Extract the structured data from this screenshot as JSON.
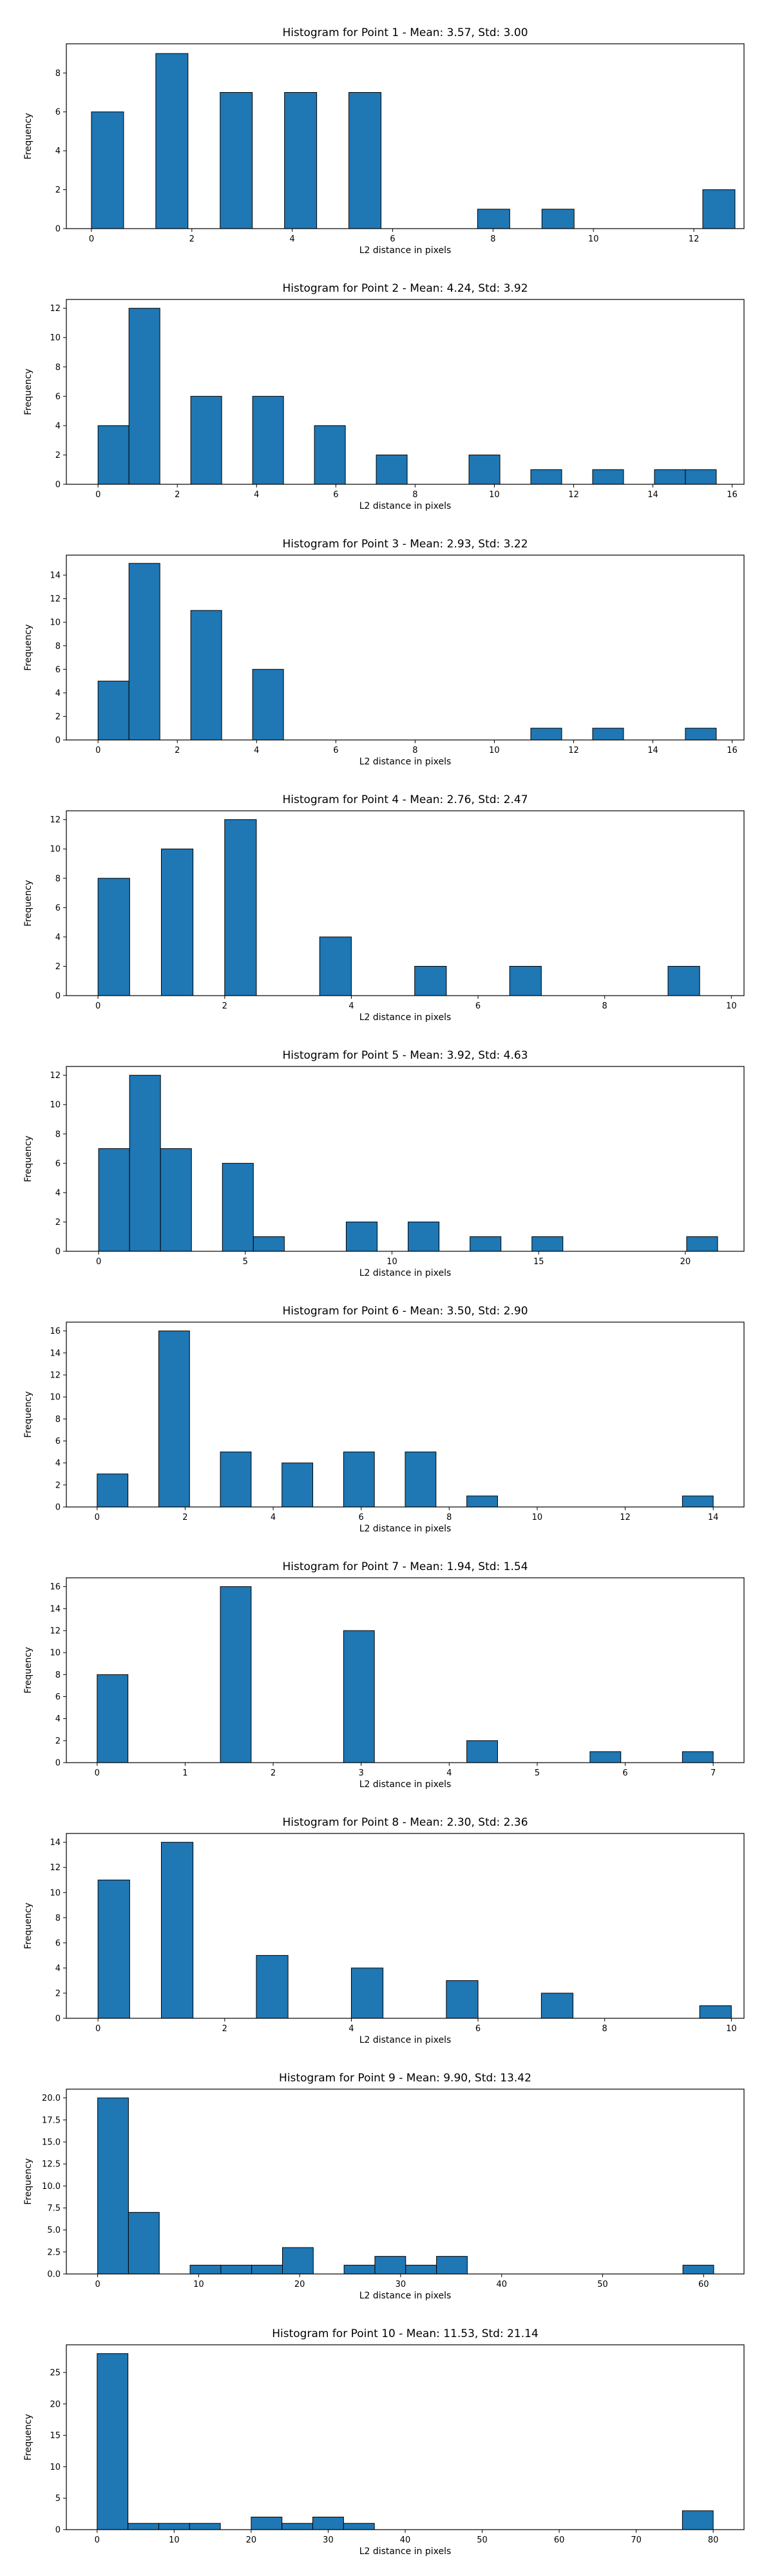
{
  "style": {
    "bar_color": "#1f77b4",
    "bar_edge_color": "#000000",
    "background": "#ffffff"
  },
  "chart_data": [
    {
      "type": "bar",
      "title": "Histogram for Point 1 - Mean: 3.57, Std: 3.00",
      "xlabel": "L2 distance in pixels",
      "ylabel": "Frequency",
      "xlim": [
        -0.5,
        13.0
      ],
      "ylim": [
        0,
        9.5
      ],
      "xticks": [
        0,
        2,
        4,
        6,
        8,
        10,
        12
      ],
      "yticks": [
        0,
        2,
        4,
        6,
        8
      ],
      "bin_edges": [
        0,
        0.641,
        1.282,
        1.923,
        2.564,
        3.205,
        3.846,
        4.487,
        5.128,
        5.769,
        6.41,
        7.051,
        7.692,
        8.333,
        8.974,
        9.615,
        10.256,
        10.897,
        11.538,
        12.179,
        12.82
      ],
      "values": [
        6,
        0,
        9,
        0,
        7,
        0,
        7,
        0,
        7,
        0,
        0,
        0,
        1,
        0,
        1,
        0,
        0,
        0,
        0,
        2
      ]
    },
    {
      "type": "bar",
      "title": "Histogram for Point 2 - Mean: 4.24, Std: 3.92",
      "xlabel": "L2 distance in pixels",
      "ylabel": "Frequency",
      "xlim": [
        -0.8,
        16.3
      ],
      "ylim": [
        0,
        12.6
      ],
      "xticks": [
        0,
        2,
        4,
        6,
        8,
        10,
        12,
        14,
        16
      ],
      "yticks": [
        0,
        2,
        4,
        6,
        8,
        10,
        12
      ],
      "bin_edges": [
        0,
        0.78,
        1.56,
        2.34,
        3.12,
        3.9,
        4.68,
        5.46,
        6.24,
        7.02,
        7.8,
        8.58,
        9.36,
        10.14,
        10.92,
        11.7,
        12.48,
        13.26,
        14.04,
        14.82,
        15.6
      ],
      "values": [
        4,
        12,
        0,
        6,
        0,
        6,
        0,
        4,
        0,
        2,
        0,
        0,
        2,
        0,
        1,
        0,
        1,
        0,
        1,
        1
      ]
    },
    {
      "type": "bar",
      "title": "Histogram for Point 3 - Mean: 2.93, Std: 3.22",
      "xlabel": "L2 distance in pixels",
      "ylabel": "Frequency",
      "xlim": [
        -0.8,
        16.3
      ],
      "ylim": [
        0,
        15.7
      ],
      "xticks": [
        0,
        2,
        4,
        6,
        8,
        10,
        12,
        14,
        16
      ],
      "yticks": [
        0,
        2,
        4,
        6,
        8,
        10,
        12,
        14
      ],
      "bin_edges": [
        0,
        0.78,
        1.56,
        2.34,
        3.12,
        3.9,
        4.68,
        5.46,
        6.24,
        7.02,
        7.8,
        8.58,
        9.36,
        10.14,
        10.92,
        11.7,
        12.48,
        13.26,
        14.04,
        14.82,
        15.6
      ],
      "values": [
        5,
        15,
        0,
        11,
        0,
        6,
        0,
        0,
        0,
        0,
        0,
        0,
        0,
        0,
        1,
        0,
        1,
        0,
        0,
        1
      ]
    },
    {
      "type": "bar",
      "title": "Histogram for Point 4 - Mean: 2.76, Std: 2.47",
      "xlabel": "L2 distance in pixels",
      "ylabel": "Frequency",
      "xlim": [
        -0.5,
        10.2
      ],
      "ylim": [
        0,
        12.6
      ],
      "xticks": [
        0,
        2,
        4,
        6,
        8,
        10
      ],
      "yticks": [
        0,
        2,
        4,
        6,
        8,
        10,
        12
      ],
      "bin_edges": [
        0,
        0.5,
        1.0,
        1.5,
        2.0,
        2.5,
        3.0,
        3.5,
        4.0,
        4.5,
        5.0,
        5.5,
        6.0,
        6.5,
        7.0,
        7.5,
        8.0,
        8.5,
        9.0,
        9.5,
        10.0
      ],
      "values": [
        8,
        0,
        10,
        0,
        12,
        0,
        0,
        4,
        0,
        0,
        2,
        0,
        0,
        2,
        0,
        0,
        0,
        0,
        2,
        0
      ]
    },
    {
      "type": "bar",
      "title": "Histogram for Point 5 - Mean: 3.92, Std: 4.63",
      "xlabel": "L2 distance in pixels",
      "ylabel": "Frequency",
      "xlim": [
        -1.1,
        22.0
      ],
      "ylim": [
        0,
        12.6
      ],
      "xticks": [
        0,
        5,
        10,
        15,
        20
      ],
      "yticks": [
        0,
        2,
        4,
        6,
        8,
        10,
        12
      ],
      "bin_edges": [
        0,
        1.055,
        2.11,
        3.165,
        4.22,
        5.275,
        6.33,
        7.385,
        8.44,
        9.495,
        10.55,
        11.605,
        12.66,
        13.715,
        14.77,
        15.825,
        16.88,
        17.935,
        18.99,
        20.045,
        21.1
      ],
      "values": [
        7,
        12,
        7,
        0,
        6,
        1,
        0,
        0,
        2,
        0,
        2,
        0,
        1,
        0,
        1,
        0,
        0,
        0,
        0,
        1
      ]
    },
    {
      "type": "bar",
      "title": "Histogram for Point 6 - Mean: 3.50, Std: 2.90",
      "xlabel": "L2 distance in pixels",
      "ylabel": "Frequency",
      "xlim": [
        -0.7,
        14.7
      ],
      "ylim": [
        0,
        16.8
      ],
      "xticks": [
        0,
        2,
        4,
        6,
        8,
        10,
        12,
        14
      ],
      "yticks": [
        0,
        2,
        4,
        6,
        8,
        10,
        12,
        14,
        16
      ],
      "bin_edges": [
        0,
        0.7,
        1.4,
        2.1,
        2.8,
        3.5,
        4.2,
        4.9,
        5.6,
        6.3,
        7.0,
        7.7,
        8.4,
        9.1,
        9.8,
        10.5,
        11.2,
        11.9,
        12.6,
        13.3,
        14.0
      ],
      "values": [
        3,
        0,
        16,
        0,
        5,
        0,
        4,
        0,
        5,
        0,
        5,
        0,
        1,
        0,
        0,
        0,
        0,
        0,
        0,
        1
      ]
    },
    {
      "type": "bar",
      "title": "Histogram for Point 7 - Mean: 1.94, Std: 1.54",
      "xlabel": "L2 distance in pixels",
      "ylabel": "Frequency",
      "xlim": [
        -0.35,
        7.35
      ],
      "ylim": [
        0,
        16.8
      ],
      "xticks": [
        0,
        1,
        2,
        3,
        4,
        5,
        6,
        7
      ],
      "yticks": [
        0,
        2,
        4,
        6,
        8,
        10,
        12,
        14,
        16
      ],
      "bin_edges": [
        0,
        0.35,
        0.7,
        1.05,
        1.4,
        1.75,
        2.1,
        2.45,
        2.8,
        3.15,
        3.5,
        3.85,
        4.2,
        4.55,
        4.9,
        5.25,
        5.6,
        5.95,
        6.3,
        6.65,
        7.0
      ],
      "values": [
        8,
        0,
        0,
        0,
        16,
        0,
        0,
        0,
        12,
        0,
        0,
        0,
        2,
        0,
        0,
        0,
        1,
        0,
        0,
        1
      ]
    },
    {
      "type": "bar",
      "title": "Histogram for Point 8 - Mean: 2.30, Std: 2.36",
      "xlabel": "L2 distance in pixels",
      "ylabel": "Frequency",
      "xlim": [
        -0.5,
        10.2
      ],
      "ylim": [
        0,
        14.7
      ],
      "xticks": [
        0,
        2,
        4,
        6,
        8,
        10
      ],
      "yticks": [
        0,
        2,
        4,
        6,
        8,
        10,
        12,
        14
      ],
      "bin_edges": [
        0,
        0.5,
        1.0,
        1.5,
        2.0,
        2.5,
        3.0,
        3.5,
        4.0,
        4.5,
        5.0,
        5.5,
        6.0,
        6.5,
        7.0,
        7.5,
        8.0,
        8.5,
        9.0,
        9.5,
        10.0
      ],
      "values": [
        11,
        0,
        14,
        0,
        0,
        5,
        0,
        0,
        4,
        0,
        0,
        3,
        0,
        0,
        2,
        0,
        0,
        0,
        0,
        1
      ]
    },
    {
      "type": "bar",
      "title": "Histogram for Point 9 - Mean: 9.90, Std: 13.42",
      "xlabel": "L2 distance in pixels",
      "ylabel": "Frequency",
      "xlim": [
        -3.1,
        64.0
      ],
      "ylim": [
        0,
        21.0
      ],
      "xticks": [
        0,
        10,
        20,
        30,
        40,
        50,
        60
      ],
      "yticks": [
        0.0,
        2.5,
        5.0,
        7.5,
        10.0,
        12.5,
        15.0,
        17.5,
        20.0
      ],
      "ytick_labels": [
        "0.0",
        "2.5",
        "5.0",
        "7.5",
        "10.0",
        "12.5",
        "15.0",
        "17.5",
        "20.0"
      ],
      "bin_edges": [
        0,
        3.05,
        6.1,
        9.15,
        12.2,
        15.25,
        18.3,
        21.35,
        24.4,
        27.45,
        30.5,
        33.55,
        36.6,
        39.65,
        42.7,
        45.75,
        48.8,
        51.85,
        54.9,
        57.95,
        61.0
      ],
      "values": [
        20,
        7,
        0,
        1,
        1,
        1,
        3,
        0,
        1,
        2,
        1,
        2,
        0,
        0,
        0,
        0,
        0,
        0,
        0,
        1
      ]
    },
    {
      "type": "bar",
      "title": "Histogram for Point 10 - Mean: 11.53, Std: 21.14",
      "xlabel": "L2 distance in pixels",
      "ylabel": "Frequency",
      "xlim": [
        -4.0,
        84.0
      ],
      "ylim": [
        0,
        29.4
      ],
      "xticks": [
        0,
        10,
        20,
        30,
        40,
        50,
        60,
        70,
        80
      ],
      "yticks": [
        0,
        5,
        10,
        15,
        20,
        25
      ],
      "bin_edges": [
        0,
        4.0,
        8.0,
        12.0,
        16.0,
        20.0,
        24.0,
        28.0,
        32.0,
        36.0,
        40.0,
        44.0,
        48.0,
        52.0,
        56.0,
        60.0,
        64.0,
        68.0,
        72.0,
        76.0,
        80.0
      ],
      "values": [
        28,
        1,
        1,
        1,
        0,
        2,
        1,
        2,
        1,
        0,
        0,
        0,
        0,
        0,
        0,
        0,
        0,
        0,
        0,
        3
      ]
    }
  ]
}
